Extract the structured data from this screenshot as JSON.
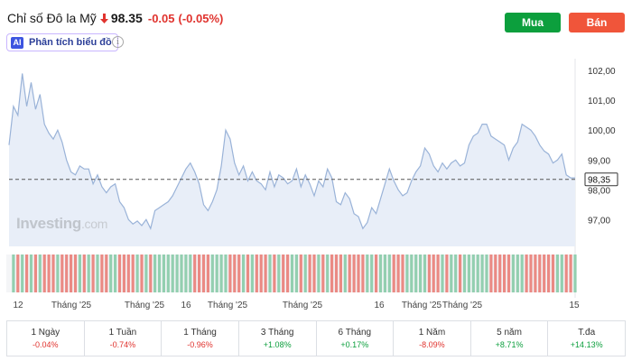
{
  "header": {
    "title": "Chỉ số Đô la Mỹ",
    "price": "98.35",
    "change": "-0.05",
    "change_pct": "(-0.05%)",
    "down_color": "#e0332e",
    "arrow_icon": "arrow-down-icon"
  },
  "actions": {
    "buy_label": "Mua",
    "sell_label": "Bán",
    "buy_color": "#0c9f3d",
    "sell_color": "#f0553a"
  },
  "ai": {
    "badge": "AI",
    "label": "Phân tích biểu đồ",
    "info_icon": "i"
  },
  "watermark": {
    "brand": "Investing",
    "suffix": ".com"
  },
  "chart_data": {
    "type": "area",
    "current_value": 98.35,
    "current_label": "98,35",
    "y_ticks": [
      "102,00",
      "101,00",
      "100,00",
      "99,00",
      "98,00",
      "97,00"
    ],
    "y_tick_values": [
      102,
      101,
      100,
      99,
      98,
      97
    ],
    "ylim": [
      96.1,
      102.4
    ],
    "x_labels": [
      "12",
      "Tháng '25",
      "Tháng '25",
      "16",
      "Tháng '25",
      "Tháng '25",
      "16",
      "Tháng '25",
      "Tháng '25",
      "15"
    ],
    "values": [
      99.5,
      100.8,
      100.5,
      101.9,
      100.8,
      101.6,
      100.7,
      101.2,
      100.2,
      99.9,
      99.7,
      100.0,
      99.6,
      99.0,
      98.6,
      98.5,
      98.8,
      98.7,
      98.7,
      98.2,
      98.5,
      98.1,
      97.9,
      98.1,
      98.2,
      97.6,
      97.4,
      97.0,
      96.85,
      96.95,
      96.8,
      97.0,
      96.7,
      97.3,
      97.4,
      97.5,
      97.6,
      97.8,
      98.1,
      98.4,
      98.7,
      98.9,
      98.6,
      98.2,
      97.5,
      97.3,
      97.6,
      98.0,
      98.8,
      100.0,
      99.7,
      98.9,
      98.5,
      98.8,
      98.3,
      98.6,
      98.3,
      98.2,
      98.0,
      98.6,
      98.1,
      98.5,
      98.4,
      98.2,
      98.3,
      98.7,
      98.1,
      98.5,
      98.2,
      97.8,
      98.3,
      98.1,
      98.7,
      98.4,
      97.6,
      97.5,
      97.9,
      97.7,
      97.2,
      97.1,
      96.7,
      96.9,
      97.4,
      97.2,
      97.7,
      98.2,
      98.7,
      98.3,
      98.0,
      97.8,
      97.9,
      98.3,
      98.6,
      98.8,
      99.4,
      99.2,
      98.8,
      98.6,
      98.9,
      98.7,
      98.9,
      99.0,
      98.8,
      98.9,
      99.5,
      99.8,
      99.9,
      100.2,
      100.2,
      99.8,
      99.7,
      99.6,
      99.5,
      99.0,
      99.4,
      99.6,
      100.2,
      100.1,
      100.0,
      99.8,
      99.5,
      99.3,
      99.2,
      98.9,
      99.0,
      99.2,
      98.5,
      98.4,
      98.4
    ]
  },
  "periods": [
    {
      "label": "1 Ngày",
      "value": "-0.04%",
      "sign": "neg"
    },
    {
      "label": "1 Tuần",
      "value": "-0.74%",
      "sign": "neg"
    },
    {
      "label": "1 Tháng",
      "value": "-0.96%",
      "sign": "neg"
    },
    {
      "label": "3 Tháng",
      "value": "+1.08%",
      "sign": "pos"
    },
    {
      "label": "6 Tháng",
      "value": "+0.17%",
      "sign": "pos"
    },
    {
      "label": "1 Năm",
      "value": "-8.09%",
      "sign": "neg"
    },
    {
      "label": "5 năm",
      "value": "+8.71%",
      "sign": "pos"
    },
    {
      "label": "T.đa",
      "value": "+14.13%",
      "sign": "pos"
    }
  ]
}
